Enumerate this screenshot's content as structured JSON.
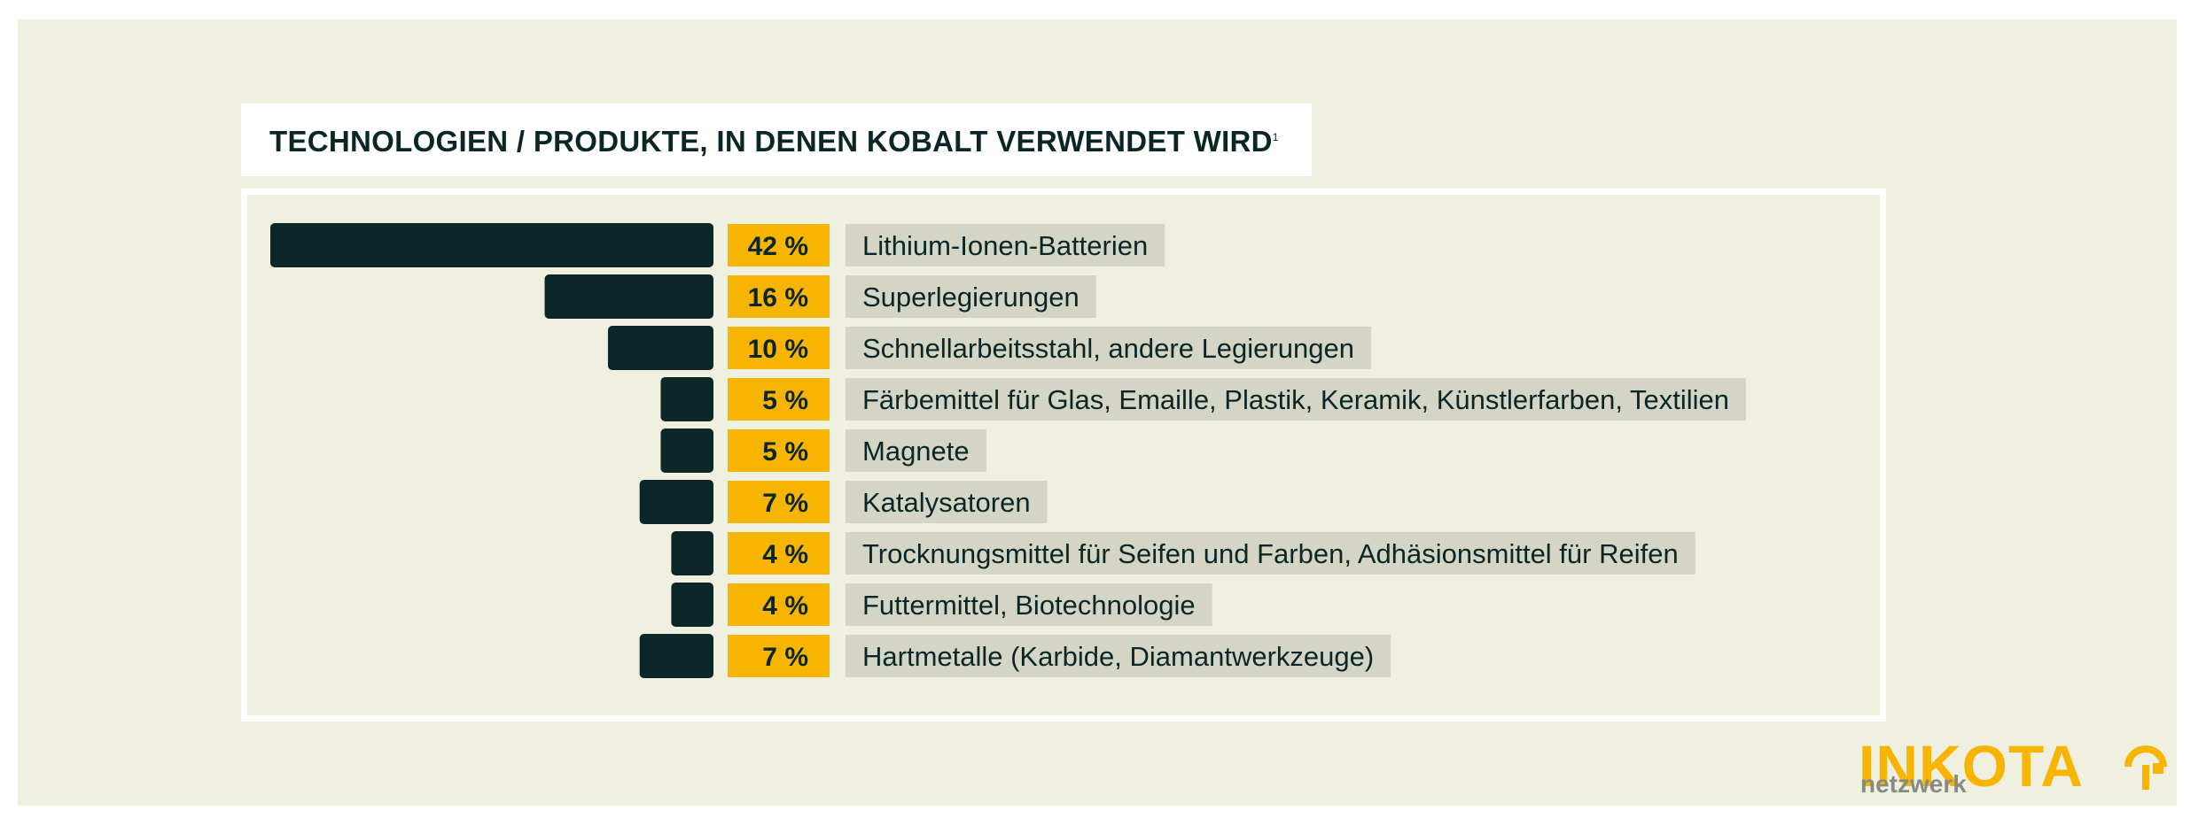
{
  "chart_data": {
    "type": "bar",
    "orientation": "horizontal",
    "title": "TECHNOLOGIEN / PRODUKTE, IN DENEN KOBALT VERWENDET WIRD",
    "title_footnote_mark": "1",
    "unit": "%",
    "categories": [
      "Lithium-Ionen-Batterien",
      "Superlegierungen",
      "Schnellarbeitsstahl, andere Legierungen",
      "Färbemittel für Glas, Emaille, Plastik, Keramik, Künstlerfarben, Textilien",
      "Magnete",
      "Katalysatoren",
      "Trocknungsmittel für Seifen und Farben, Adhäsionsmittel für Reifen",
      "Futtermittel, Biotechnologie",
      "Hartmetalle (Karbide, Diamantwerkzeuge)"
    ],
    "values": [
      42,
      16,
      10,
      5,
      5,
      7,
      4,
      4,
      7
    ],
    "value_labels": [
      "42 %",
      "16 %",
      "10 %",
      "5 %",
      "5 %",
      "7 %",
      "4 %",
      "4 %",
      "7 %"
    ]
  },
  "brand": {
    "name": "INKOTA",
    "sub": "netzwerk"
  },
  "colors": {
    "background": "#f0f0e1",
    "bar": "#0a2627",
    "value_box": "#f7b400",
    "label_box": "#d5d5c6",
    "text": "#0a2627"
  }
}
